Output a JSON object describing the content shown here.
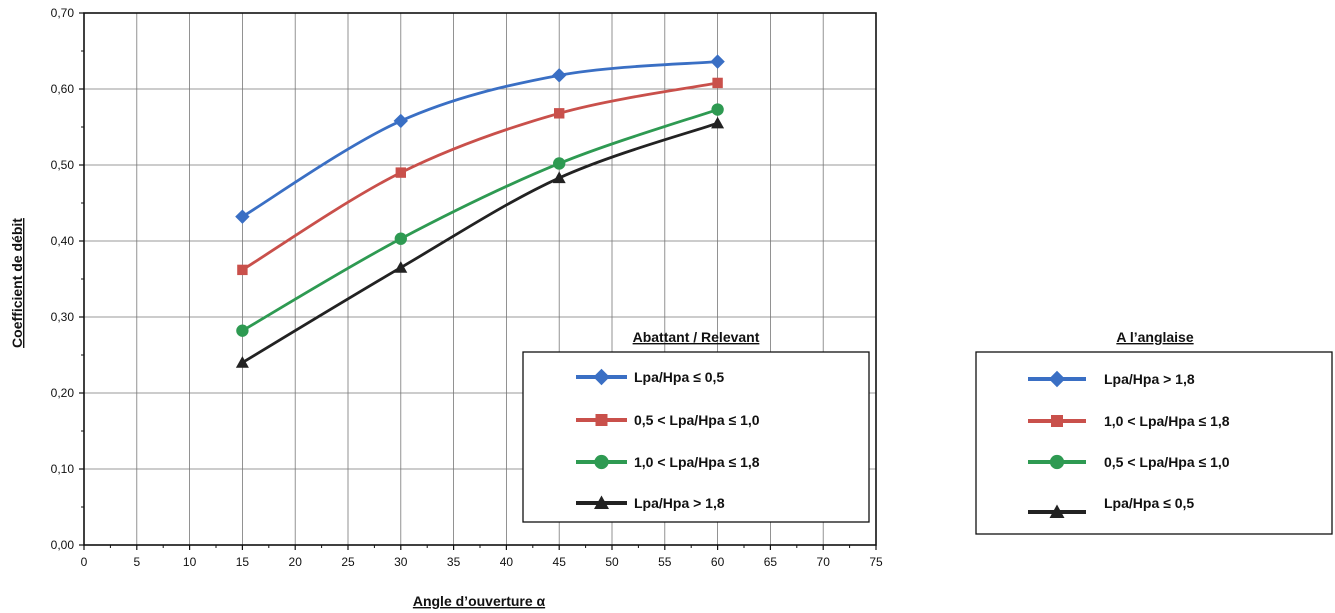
{
  "chart_data": {
    "type": "line",
    "xlabel": "Angle d’ouverture α",
    "ylabel": "Coefficient de débit",
    "xlim": [
      0,
      75
    ],
    "ylim": [
      0,
      0.7
    ],
    "x_ticks": [
      "0",
      "5",
      "10",
      "15",
      "20",
      "25",
      "30",
      "35",
      "40",
      "45",
      "50",
      "55",
      "60",
      "65",
      "70",
      "75"
    ],
    "y_ticks": [
      "0,00",
      "0,10",
      "0,20",
      "0,30",
      "0,40",
      "0,50",
      "0,60",
      "0,70"
    ],
    "grid": true,
    "x": [
      15,
      30,
      45,
      60
    ],
    "series": [
      {
        "name": "Lpa/Hpa ≤ 0,5",
        "color": "#3a6fc4",
        "marker": "diamond",
        "values": [
          0.432,
          0.558,
          0.618,
          0.636
        ]
      },
      {
        "name": "0,5 < Lpa/Hpa ≤ 1,0",
        "color": "#c9504b",
        "marker": "square",
        "values": [
          0.362,
          0.49,
          0.568,
          0.608
        ]
      },
      {
        "name": "1,0 < Lpa/Hpa ≤ 1,8",
        "color": "#2e9a52",
        "marker": "circle",
        "values": [
          0.282,
          0.403,
          0.502,
          0.573
        ]
      },
      {
        "name": "Lpa/Hpa > 1,8",
        "color": "#222222",
        "marker": "triangle",
        "values": [
          0.24,
          0.365,
          0.483,
          0.555
        ]
      }
    ],
    "legends": [
      {
        "title": "Abattant / Relevant",
        "placement": "bottom-right-inside",
        "entries": [
          {
            "label": "Lpa/Hpa ≤ 0,5",
            "color": "#3a6fc4",
            "marker": "diamond"
          },
          {
            "label": "0,5 < Lpa/Hpa ≤ 1,0",
            "color": "#c9504b",
            "marker": "square"
          },
          {
            "label": "1,0 < Lpa/Hpa ≤ 1,8",
            "color": "#2e9a52",
            "marker": "circle"
          },
          {
            "label": "Lpa/Hpa > 1,8",
            "color": "#222222",
            "marker": "triangle"
          }
        ]
      },
      {
        "title": "A l’anglaise",
        "placement": "right-outside",
        "entries": [
          {
            "label": "Lpa/Hpa > 1,8",
            "color": "#3a6fc4",
            "marker": "diamond"
          },
          {
            "label": "1,0 < Lpa/Hpa ≤ 1,8",
            "color": "#c9504b",
            "marker": "square"
          },
          {
            "label": "0,5 < Lpa/Hpa ≤ 1,0",
            "color": "#2e9a52",
            "marker": "circle"
          },
          {
            "label": "Lpa/Hpa ≤ 0,5",
            "color": "#222222",
            "marker": "triangle"
          }
        ]
      }
    ]
  }
}
